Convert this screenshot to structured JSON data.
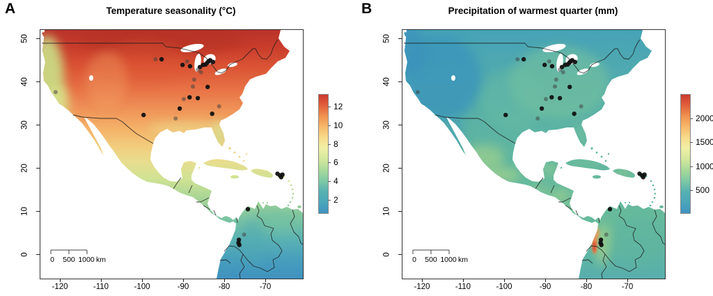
{
  "figure_background": "#ffffff",
  "chart_data": {
    "type": "heatmap",
    "description": "Two raster climate maps of North America, Central America, the Caribbean and northern South America, with dark sampling-site points in the US Midwest/Southeast, California, Puerto Rico and Colombia.",
    "palette_low_to_high": [
      "#3f93c0",
      "#4aa6b9",
      "#56b1b2",
      "#7ec9a4",
      "#a8da9a",
      "#d3e89c",
      "#eff0a6",
      "#f8dc8c",
      "#f7b96b",
      "#f0934f",
      "#e2603c",
      "#cc3a2d"
    ],
    "panels": [
      {
        "label": "A",
        "title": "Temperature seasonality (°C)",
        "x_axis": {
          "ticks": [
            -120,
            -110,
            -100,
            -90,
            -80,
            -70
          ],
          "range": [
            -125,
            -61
          ]
        },
        "y_axis": {
          "ticks": [
            0,
            10,
            20,
            30,
            40,
            50
          ],
          "range": [
            -5.5,
            52
          ]
        },
        "colorbar": {
          "ticks": [
            2,
            4,
            6,
            8,
            10,
            12
          ],
          "domain": [
            0.7,
            13.3
          ],
          "unit": "°C"
        },
        "scale_bar": {
          "labels": [
            "0",
            "500",
            "1000"
          ],
          "unit": "km"
        }
      },
      {
        "label": "B",
        "title": "Precipitation of warmest quarter (mm)",
        "x_axis": {
          "ticks": [
            -120,
            -110,
            -100,
            -90,
            -80,
            -70
          ],
          "range": [
            -125,
            -61
          ]
        },
        "y_axis": {
          "ticks": [
            0,
            10,
            20,
            30,
            40,
            50
          ],
          "range": [
            -5.5,
            52
          ]
        },
        "colorbar": {
          "ticks": [
            500,
            1000,
            1500,
            2000
          ],
          "domain": [
            30,
            2515
          ],
          "unit": "mm"
        },
        "scale_bar": {
          "labels": [
            "0",
            "500",
            "1000"
          ],
          "unit": "km"
        }
      }
    ],
    "sample_points": [
      {
        "lon": -96.9,
        "lat": 45.3,
        "shade": "gray"
      },
      {
        "lon": -95.4,
        "lat": 45.3,
        "shade": "dark"
      },
      {
        "lon": -90.3,
        "lat": 44.0,
        "shade": "dark"
      },
      {
        "lon": -89.2,
        "lat": 44.8,
        "shade": "gray"
      },
      {
        "lon": -88.5,
        "lat": 43.7,
        "shade": "dark"
      },
      {
        "lon": -86.1,
        "lat": 43.5,
        "shade": "dark"
      },
      {
        "lon": -85.3,
        "lat": 44.0,
        "shade": "dark"
      },
      {
        "lon": -84.7,
        "lat": 44.1,
        "shade": "dark"
      },
      {
        "lon": -84.3,
        "lat": 44.5,
        "shade": "dark"
      },
      {
        "lon": -84.0,
        "lat": 44.8,
        "shade": "dark"
      },
      {
        "lon": -83.6,
        "lat": 45.1,
        "shade": "dark"
      },
      {
        "lon": -82.9,
        "lat": 44.7,
        "shade": "dark"
      },
      {
        "lon": -86.6,
        "lat": 42.9,
        "shade": "gray"
      },
      {
        "lon": -85.8,
        "lat": 42.3,
        "shade": "gray"
      },
      {
        "lon": -87.5,
        "lat": 40.6,
        "shade": "gray"
      },
      {
        "lon": -87.8,
        "lat": 39.0,
        "shade": "gray"
      },
      {
        "lon": -84.2,
        "lat": 38.9,
        "shade": "dark"
      },
      {
        "lon": -90.0,
        "lat": 36.1,
        "shade": "gray"
      },
      {
        "lon": -88.6,
        "lat": 36.5,
        "shade": "dark"
      },
      {
        "lon": -86.6,
        "lat": 36.3,
        "shade": "dark"
      },
      {
        "lon": -91.0,
        "lat": 33.9,
        "shade": "dark"
      },
      {
        "lon": -92.0,
        "lat": 31.6,
        "shade": "gray"
      },
      {
        "lon": -99.8,
        "lat": 32.4,
        "shade": "dark"
      },
      {
        "lon": -81.4,
        "lat": 34.4,
        "shade": "gray"
      },
      {
        "lon": -83.1,
        "lat": 32.7,
        "shade": "dark"
      },
      {
        "lon": -121.2,
        "lat": 37.7,
        "shade": "gray"
      },
      {
        "lon": -67.2,
        "lat": 18.8,
        "shade": "dark"
      },
      {
        "lon": -66.6,
        "lat": 18.4,
        "shade": "dark"
      },
      {
        "lon": -66.0,
        "lat": 18.6,
        "shade": "dark"
      },
      {
        "lon": -66.3,
        "lat": 18.0,
        "shade": "dark"
      },
      {
        "lon": -74.4,
        "lat": 10.6,
        "shade": "dark"
      },
      {
        "lon": -75.3,
        "lat": 4.7,
        "shade": "gray"
      },
      {
        "lon": -76.6,
        "lat": 3.5,
        "shade": "dark"
      },
      {
        "lon": -76.7,
        "lat": 2.8,
        "shade": "dark"
      },
      {
        "lon": -76.5,
        "lat": 2.3,
        "shade": "dark"
      }
    ]
  }
}
